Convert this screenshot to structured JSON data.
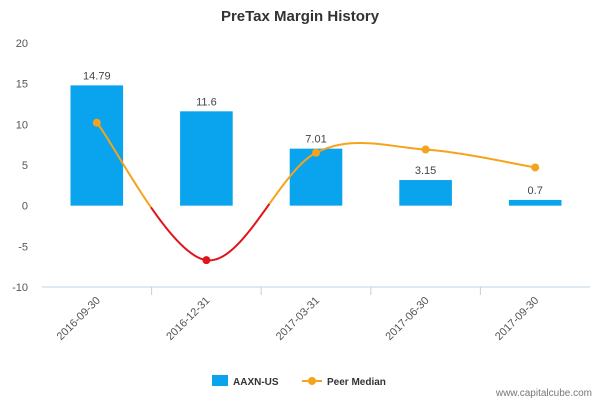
{
  "chart_data": {
    "type": "bar",
    "title": "PreTax Margin History",
    "categories": [
      "2016-09-30",
      "2016-12-31",
      "2017-03-31",
      "2017-06-30",
      "2017-09-30"
    ],
    "series": [
      {
        "name": "AAXN-US",
        "type": "bar",
        "values": [
          14.79,
          11.6,
          7.01,
          3.15,
          0.7
        ],
        "labels": [
          "14.79",
          "11.6",
          "7.01",
          "3.15",
          "0.7"
        ],
        "color": "#0aa4ee"
      },
      {
        "name": "Peer Median",
        "type": "line",
        "values": [
          10.2,
          -6.7,
          6.5,
          6.9,
          4.7
        ],
        "color": "#f5a31a",
        "negative_color": "#e0151b"
      }
    ],
    "ylim": [
      -10,
      20
    ],
    "yticks": [
      20,
      15,
      10,
      5,
      0,
      -5,
      -10
    ],
    "grid": false,
    "legend": "bottom-center"
  },
  "watermark": "www.capitalcube.com"
}
